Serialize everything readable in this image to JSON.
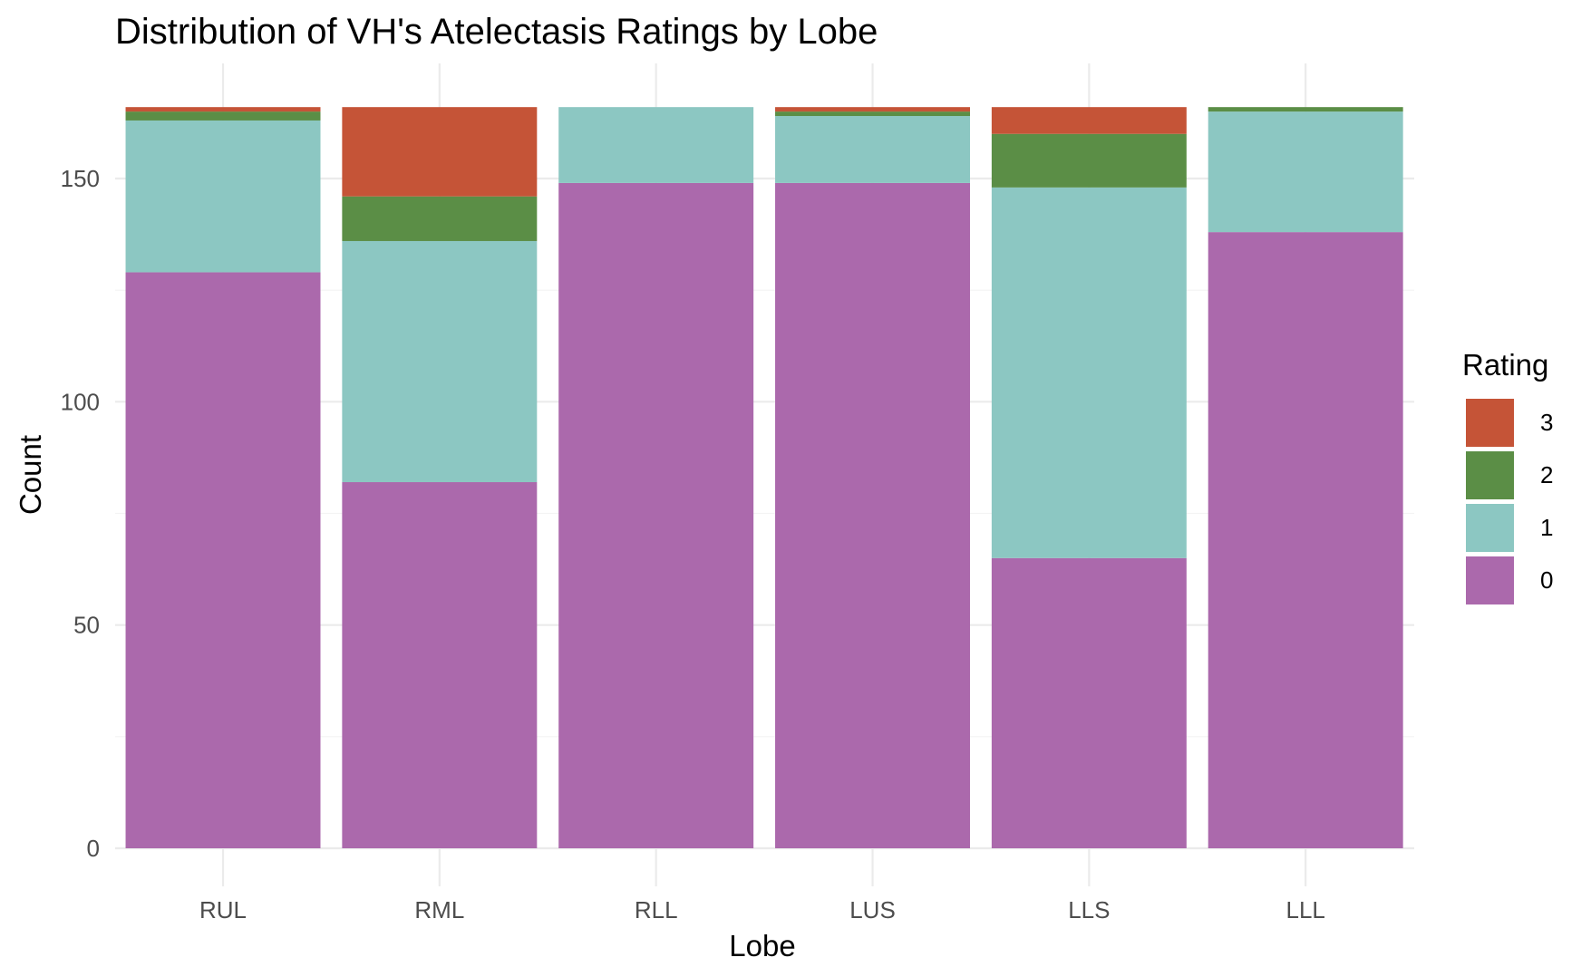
{
  "chart_data": {
    "type": "bar",
    "stacked": true,
    "title": "Distribution of VH's Atelectasis Ratings by Lobe",
    "xlabel": "Lobe",
    "ylabel": "Count",
    "categories": [
      "RUL",
      "RML",
      "RLL",
      "LUS",
      "LLS",
      "LLL"
    ],
    "ylim": [
      0,
      166
    ],
    "yticks": [
      0,
      50,
      100,
      150
    ],
    "legend_title": "Rating",
    "legend_position": "right",
    "series": [
      {
        "name": "0",
        "color": "#ab69ac",
        "values": [
          129,
          82,
          149,
          149,
          65,
          138
        ]
      },
      {
        "name": "1",
        "color": "#8cc7c2",
        "values": [
          34,
          54,
          17,
          15,
          83,
          27
        ]
      },
      {
        "name": "2",
        "color": "#5b8e46",
        "values": [
          2,
          10,
          0,
          1,
          12,
          1
        ]
      },
      {
        "name": "3",
        "color": "#c55437",
        "values": [
          1,
          20,
          0,
          1,
          6,
          0
        ]
      }
    ]
  }
}
